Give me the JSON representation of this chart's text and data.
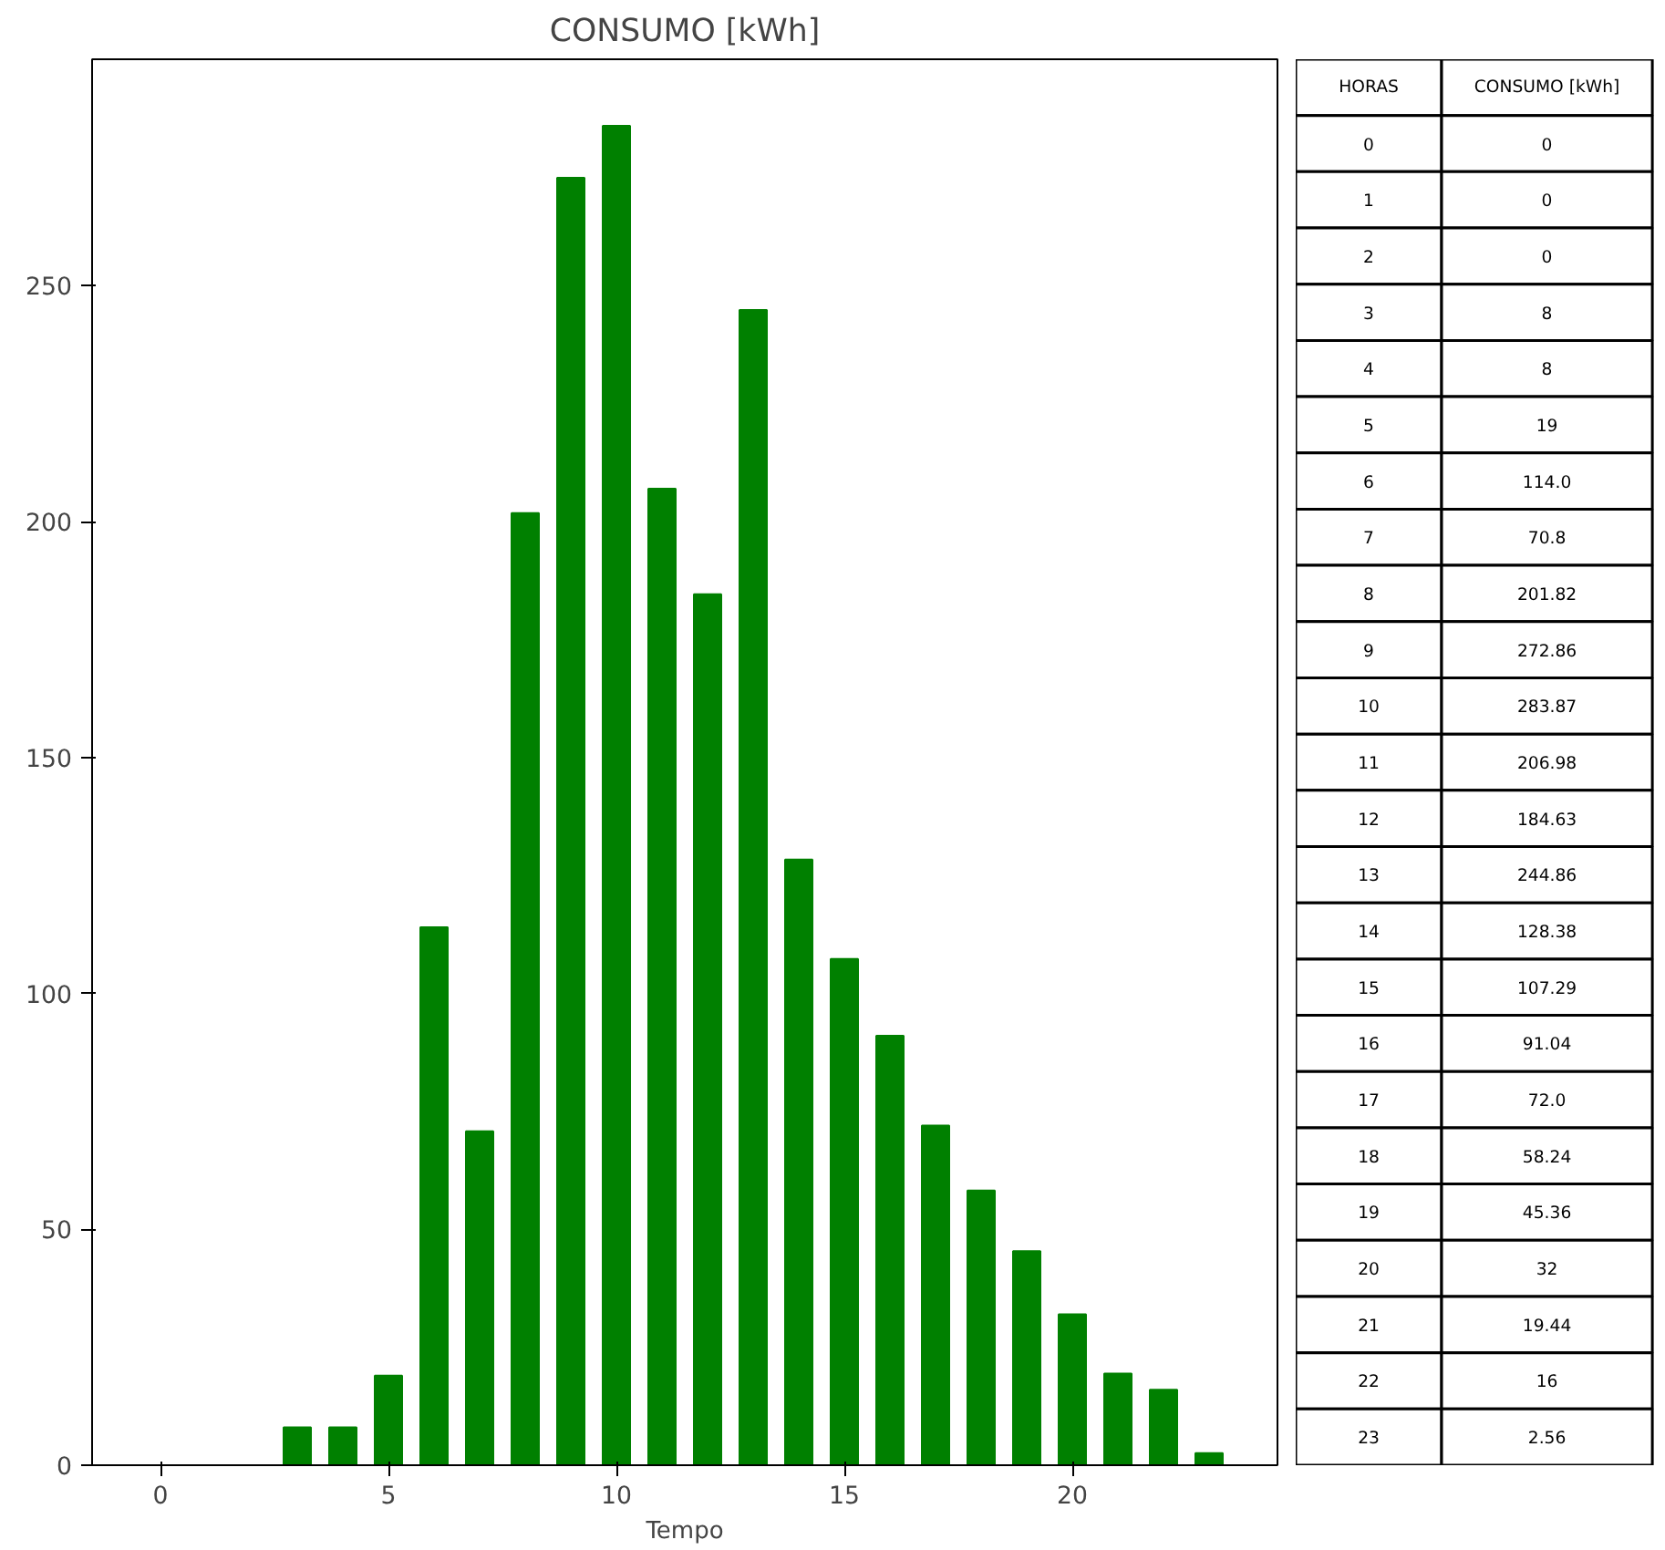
{
  "chart_data": [
    {
      "type": "bar",
      "title": "CONSUMO [kWh]",
      "xlabel": "Tempo",
      "x": [
        0,
        1,
        2,
        3,
        4,
        5,
        6,
        7,
        8,
        9,
        10,
        11,
        12,
        13,
        14,
        15,
        16,
        17,
        18,
        19,
        20,
        21,
        22,
        23
      ],
      "values": [
        0,
        0,
        0,
        8,
        8,
        19,
        114.0,
        70.8,
        201.82,
        272.86,
        283.87,
        206.98,
        184.63,
        244.86,
        128.38,
        107.29,
        91.04,
        72.0,
        58.24,
        45.36,
        32,
        19.44,
        16,
        2.56
      ],
      "color": "#008000",
      "xlim": [
        -1.5,
        24.5
      ],
      "xticks": [
        0,
        5,
        10,
        15,
        20
      ],
      "ylim": [
        0,
        298
      ],
      "yticks": [
        0,
        50,
        100,
        150,
        200,
        250
      ],
      "grid": false
    },
    {
      "type": "heatmap",
      "ylabel": "HORAS",
      "categories": [
        "CONSUMO [kWh]"
      ],
      "y_categories": [
        "0",
        "1",
        "2",
        "3",
        "4",
        "5",
        "6",
        "7",
        "8",
        "9",
        "10",
        "11",
        "12",
        "13",
        "14",
        "15",
        "16",
        "17",
        "18",
        "19",
        "20",
        "21",
        "22",
        "23"
      ],
      "cells": [
        [
          0
        ],
        [
          0
        ],
        [
          0
        ],
        [
          8
        ],
        [
          8
        ],
        [
          19
        ],
        [
          114.0
        ],
        [
          70.8
        ],
        [
          201.82
        ],
        [
          272.86
        ],
        [
          283.87
        ],
        [
          206.98
        ],
        [
          184.63
        ],
        [
          244.86
        ],
        [
          128.38
        ],
        [
          107.29
        ],
        [
          91.04
        ],
        [
          72.0
        ],
        [
          58.24
        ],
        [
          45.36
        ],
        [
          32
        ],
        [
          19.44
        ],
        [
          16
        ],
        [
          2.56
        ]
      ],
      "cell_labels": [
        [
          "0"
        ],
        [
          "0"
        ],
        [
          "0"
        ],
        [
          "8"
        ],
        [
          "8"
        ],
        [
          "19"
        ],
        [
          "114.0"
        ],
        [
          "70.8"
        ],
        [
          "201.82"
        ],
        [
          "272.86"
        ],
        [
          "283.87"
        ],
        [
          "206.98"
        ],
        [
          "184.63"
        ],
        [
          "244.86"
        ],
        [
          "128.38"
        ],
        [
          "107.29"
        ],
        [
          "91.04"
        ],
        [
          "72.0"
        ],
        [
          "58.24"
        ],
        [
          "45.36"
        ],
        [
          "32"
        ],
        [
          "19.44"
        ],
        [
          "16"
        ],
        [
          "2.56"
        ]
      ]
    }
  ]
}
